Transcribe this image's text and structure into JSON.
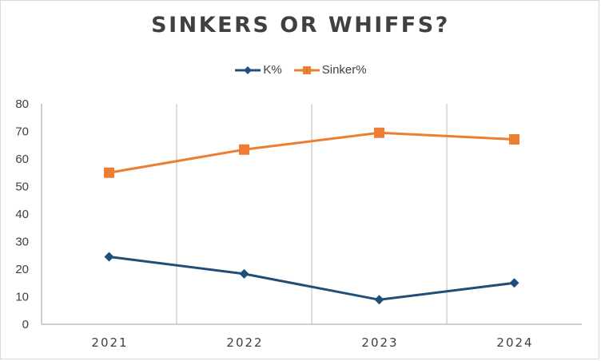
{
  "chart_data": {
    "type": "line",
    "title": "SINKERS OR WHIFFS?",
    "categories": [
      "2021",
      "2022",
      "2023",
      "2024"
    ],
    "series": [
      {
        "name": "K%",
        "values": [
          24.5,
          18.3,
          8.9,
          15.0
        ],
        "color": "#1f4e79",
        "marker": "diamond"
      },
      {
        "name": "Sinker%",
        "values": [
          55.0,
          63.4,
          69.5,
          67.1
        ],
        "color": "#ed7d31",
        "marker": "square"
      }
    ],
    "xlabel": "",
    "ylabel": "",
    "ylim": [
      0,
      80
    ],
    "yticks": [
      0,
      10,
      20,
      30,
      40,
      50,
      60,
      70,
      80
    ],
    "grid": "vertical",
    "legend_position": "top"
  }
}
